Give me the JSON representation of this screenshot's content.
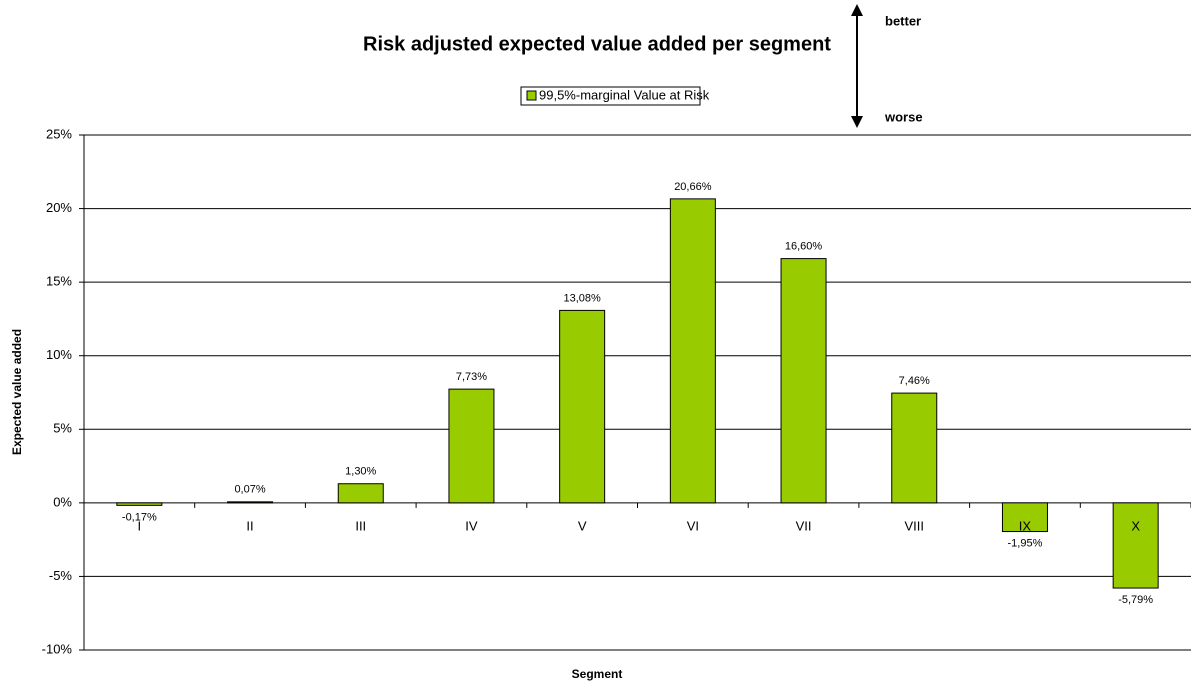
{
  "chart_data": {
    "type": "bar",
    "title": "Risk adjusted expected value added per segment",
    "x_label": "Segment",
    "y_label": "Expected value added",
    "legend": "99,5%-marginal Value at Risk",
    "annotations": [
      "better",
      "worse"
    ],
    "categories": [
      "I",
      "II",
      "III",
      "IV",
      "V",
      "VI",
      "VII",
      "VIII",
      "IX",
      "X"
    ],
    "values": [
      -0.17,
      0.07,
      1.3,
      7.73,
      13.08,
      20.66,
      16.6,
      7.46,
      -1.95,
      -5.79
    ],
    "value_labels": [
      "-0,17%",
      "0,07%",
      "1,30%",
      "7,73%",
      "13,08%",
      "20,66%",
      "16,60%",
      "7,46%",
      "-1,95%",
      "-5,79%"
    ],
    "color": "#99cc00",
    "ylim": [
      -10,
      25
    ],
    "yticks": [
      {
        "value": -10,
        "label": "-10%"
      },
      {
        "value": -5,
        "label": "-5%"
      },
      {
        "value": 0,
        "label": "0%"
      },
      {
        "value": 5,
        "label": "5%"
      },
      {
        "value": 10,
        "label": "10%"
      },
      {
        "value": 15,
        "label": "15%"
      },
      {
        "value": 20,
        "label": "20%"
      },
      {
        "value": 25,
        "label": "25%"
      }
    ],
    "grid": true
  }
}
